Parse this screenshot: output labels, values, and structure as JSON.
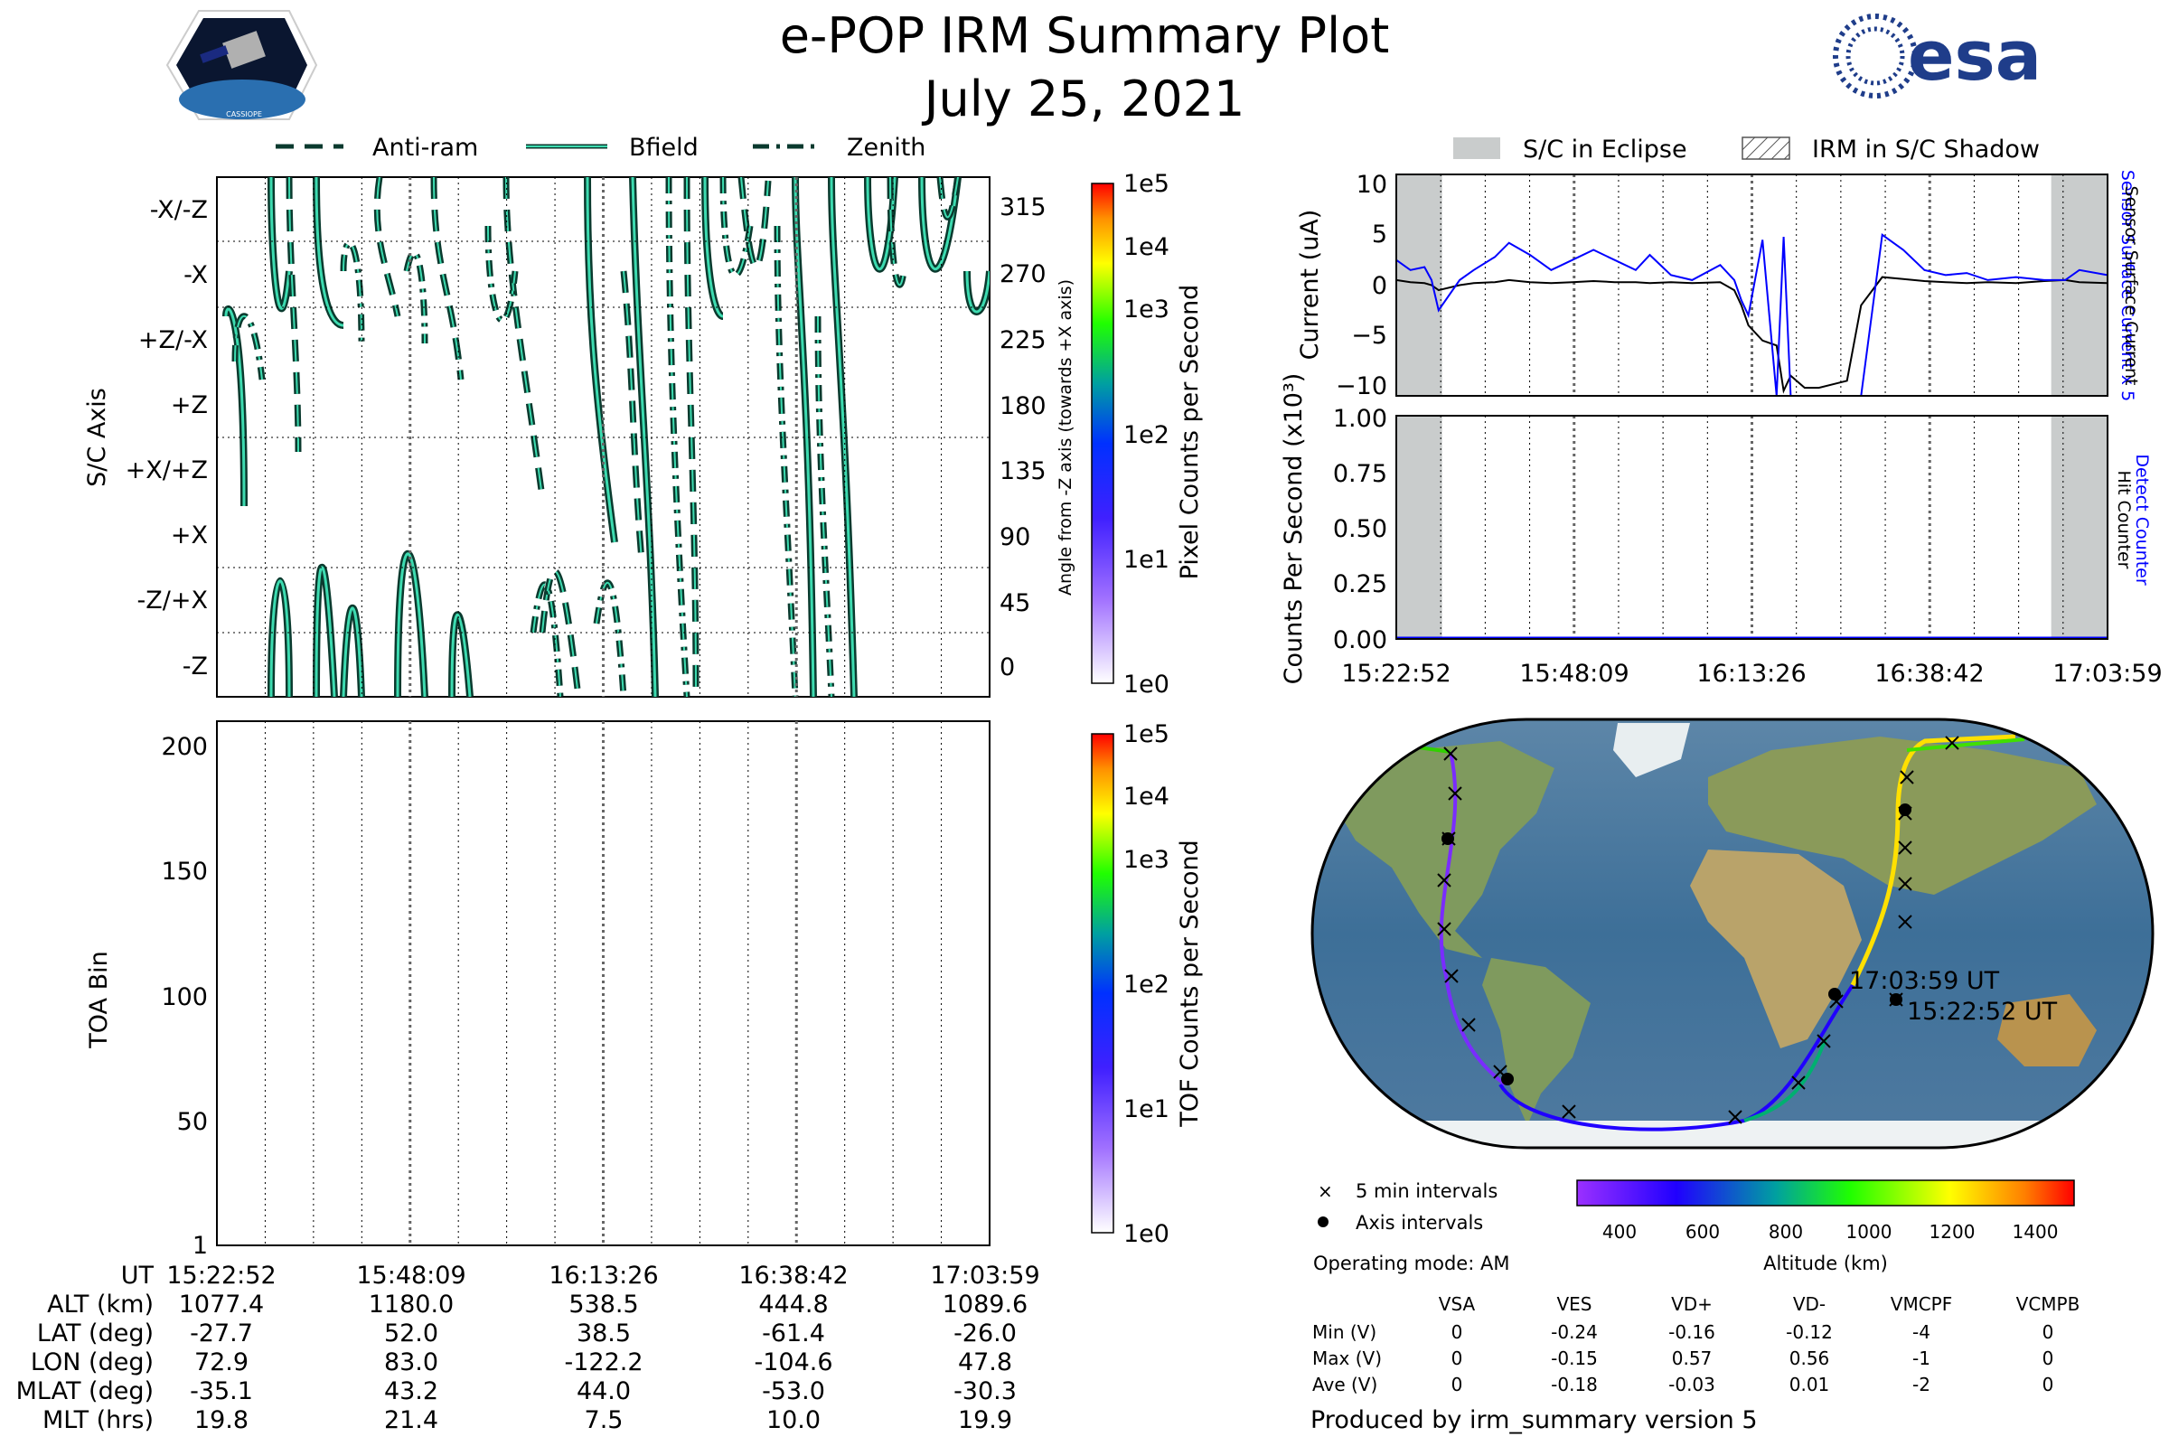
{
  "header": {
    "title": "e-POP IRM Summary Plot",
    "date": "July 25, 2021",
    "logo_left_text": "CASSIOPE",
    "logo_right_text": "esa"
  },
  "colors": {
    "contour_fill": "#3ddbb0",
    "contour_line": "#0a3a2e",
    "current_sensor": "#0000ff",
    "current_surface": "#000000",
    "eclipse": "#c9cccc"
  },
  "top_legend": [
    {
      "label": "Anti-ram",
      "style": "dashed"
    },
    {
      "label": "Bfield",
      "style": "solid"
    },
    {
      "label": "Zenith",
      "style": "dashdot"
    }
  ],
  "right_legend": [
    {
      "label": "S/C in Eclipse",
      "style": "grey-box"
    },
    {
      "label": "IRM in S/C Shadow",
      "style": "hatched-box"
    }
  ],
  "axis_panel": {
    "ylabel": "S/C Axis",
    "left_ticks": [
      "-X/-Z",
      "-X",
      "+Z/-X",
      "+Z",
      "+X/+Z",
      "+X",
      "-Z/+X",
      "-Z"
    ],
    "right_ticks": [
      "315",
      "270",
      "225",
      "180",
      "135",
      "90",
      "45",
      "0"
    ],
    "right_label": "Angle from -Z axis (towards +X axis)",
    "colorbar_label": "Pixel Counts per Second",
    "colorbar_ticks": [
      "1e5",
      "1e4",
      "1e3",
      "1e2",
      "1e1",
      "1e0"
    ]
  },
  "toa_panel": {
    "ylabel": "TOA Bin",
    "yticks": [
      "200",
      "150",
      "100",
      "50",
      "1"
    ],
    "colorbar_label": "TOF Counts per Second",
    "colorbar_ticks": [
      "1e5",
      "1e4",
      "1e3",
      "1e2",
      "1e1",
      "1e0"
    ]
  },
  "ephemeris": {
    "row_labels": [
      "UT",
      "ALT (km)",
      "LAT (deg)",
      "LON (deg)",
      "MLAT (deg)",
      "MLT (hrs)"
    ],
    "columns": [
      [
        "15:22:52",
        "1077.4",
        "-27.7",
        "72.9",
        "-35.1",
        "19.8"
      ],
      [
        "15:48:09",
        "1180.0",
        "52.0",
        "83.0",
        "43.2",
        "21.4"
      ],
      [
        "16:13:26",
        "538.5",
        "38.5",
        "-122.2",
        "44.0",
        "7.5"
      ],
      [
        "16:38:42",
        "444.8",
        "-61.4",
        "-104.6",
        "-53.0",
        "10.0"
      ],
      [
        "17:03:59",
        "1089.6",
        "-26.0",
        "47.8",
        "-30.3",
        "19.9"
      ]
    ]
  },
  "chart_data": [
    {
      "type": "line",
      "title": "Current",
      "ylabel": "Current (uA)",
      "ylim": [
        -11,
        11
      ],
      "yticks": [
        "10",
        "5",
        "0",
        "−5",
        "−10"
      ],
      "right_labels": [
        "Sensor Surface Current x 5",
        "Sensor Surface Current"
      ],
      "x_minutes": [
        0,
        2,
        4,
        5,
        6,
        9,
        11,
        14,
        16,
        19,
        22,
        25,
        28,
        31,
        34,
        36,
        39,
        42,
        46,
        48,
        49,
        50,
        52,
        54,
        55,
        56,
        58,
        60,
        64,
        66,
        69,
        72,
        75,
        78,
        81,
        84,
        88,
        92,
        95,
        97,
        101
      ],
      "series": [
        {
          "name": "Sensor Surface Current x 5",
          "values": [
            2.5,
            1.5,
            1.8,
            0.5,
            -2.5,
            0.5,
            1.5,
            2.8,
            4.2,
            3.0,
            1.5,
            2.5,
            3.5,
            2.5,
            1.5,
            3.0,
            1.0,
            0.5,
            2.0,
            0.5,
            -1.5,
            -3.0,
            4.5,
            -11,
            4.8,
            -11,
            -11,
            -11,
            -11,
            -11,
            5.0,
            3.5,
            1.5,
            1.0,
            1.2,
            0.5,
            0.8,
            0.5,
            0.5,
            1.5,
            1.0
          ]
        },
        {
          "name": "Sensor Surface Current",
          "values": [
            0.5,
            0.3,
            0.2,
            0.0,
            -0.5,
            0.0,
            0.2,
            0.3,
            0.5,
            0.3,
            0.2,
            0.3,
            0.4,
            0.3,
            0.3,
            0.2,
            0.3,
            0.2,
            0.3,
            -0.5,
            -2.0,
            -4.0,
            -5.5,
            -6.0,
            -10.5,
            -9.0,
            -10.2,
            -10.2,
            -9.5,
            -2.0,
            0.8,
            0.6,
            0.4,
            0.3,
            0.2,
            0.3,
            0.2,
            0.4,
            0.5,
            0.3,
            0.2
          ]
        }
      ],
      "eclipse_minutes": [
        [
          0,
          6.5
        ],
        [
          93,
          101
        ]
      ]
    },
    {
      "type": "line",
      "title": "Counts",
      "ylabel": "Counts Per Second (x10³)",
      "ylim": [
        0,
        1
      ],
      "yticks": [
        "1.00",
        "0.75",
        "0.50",
        "0.25",
        "0.00"
      ],
      "right_labels": [
        "Detect Counter",
        "Hit Counter"
      ],
      "series": [
        {
          "name": "Detect Counter",
          "values": [
            0,
            0
          ]
        }
      ],
      "x_ticks": [
        "15:22:52",
        "15:48:09",
        "16:13:26",
        "16:38:42",
        "17:03:59"
      ]
    }
  ],
  "map": {
    "label_end": "17:03:59 UT",
    "label_start": "15:22:52 UT",
    "legend_5min": "5 min intervals",
    "legend_axis": "Axis intervals",
    "altitude_label": "Altitude (km)",
    "altitude_ticks": [
      "400",
      "600",
      "800",
      "1000",
      "1200",
      "1400"
    ],
    "operating_mode": "Operating mode: AM"
  },
  "voltages": {
    "headers": [
      "VSA",
      "VES",
      "VD+",
      "VD-",
      "VMCPF",
      "VCMPB"
    ],
    "rows": [
      {
        "label": "Min (V)",
        "values": [
          "0",
          "-0.24",
          "-0.16",
          "-0.12",
          "-4",
          "0"
        ]
      },
      {
        "label": "Max (V)",
        "values": [
          "0",
          "-0.15",
          "0.57",
          "0.56",
          "-1",
          "0"
        ]
      },
      {
        "label": "Ave (V)",
        "values": [
          "0",
          "-0.18",
          "-0.03",
          "0.01",
          "-2",
          "0"
        ]
      }
    ]
  },
  "footer": "Produced by irm_summary version 5"
}
